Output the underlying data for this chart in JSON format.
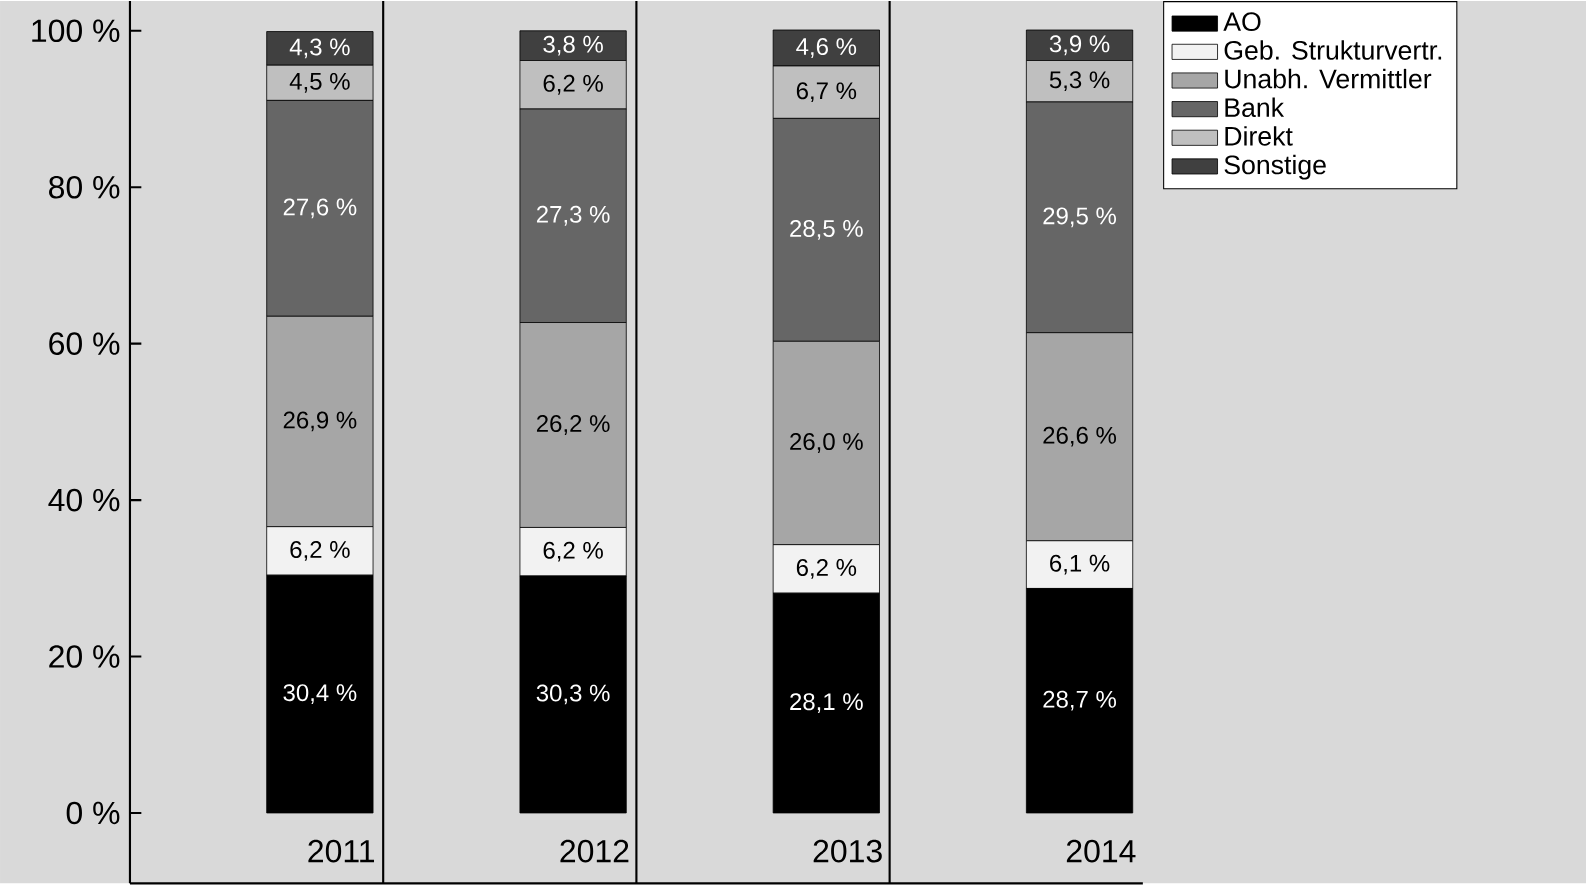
{
  "chart_data": {
    "type": "bar",
    "stacked": true,
    "categories": [
      "2011",
      "2012",
      "2013",
      "2014"
    ],
    "series": [
      {
        "name": "AO",
        "color": "#000000",
        "values": [
          30.4,
          30.3,
          28.1,
          28.7
        ],
        "value_labels": [
          "30,4 %",
          "30,3 %",
          "28,1 %",
          "28,7 %"
        ]
      },
      {
        "name": "Geb. Strukturvertr.",
        "color": "#f2f2f2",
        "values": [
          6.2,
          6.2,
          6.2,
          6.1
        ],
        "value_labels": [
          "6,2 %",
          "6,2 %",
          "6,2 %",
          "6,1 %"
        ]
      },
      {
        "name": "Unabh. Vermittler",
        "color": "#a6a6a6",
        "values": [
          26.9,
          26.2,
          26.0,
          26.6
        ],
        "value_labels": [
          "26,9 %",
          "26,2 %",
          "26,0 %",
          "26,6 %"
        ]
      },
      {
        "name": "Bank",
        "color": "#666666",
        "values": [
          27.6,
          27.3,
          28.5,
          29.5
        ],
        "value_labels": [
          "27,6 %",
          "27,3 %",
          "28,5 %",
          "29,5 %"
        ]
      },
      {
        "name": "Direkt",
        "color": "#bfbfbf",
        "values": [
          4.5,
          6.2,
          6.7,
          5.3
        ],
        "value_labels": [
          "4,5 %",
          "6,2 %",
          "6,7 %",
          "5,3 %"
        ]
      },
      {
        "name": "Sonstige",
        "color": "#404040",
        "values": [
          4.3,
          3.8,
          4.6,
          3.9
        ],
        "value_labels": [
          "4,3 %",
          "3,8 %",
          "4,6 %",
          "3,9 %"
        ]
      }
    ],
    "ylim": [
      0,
      100
    ],
    "yticks": [
      {
        "value": 0,
        "label": "0 %"
      },
      {
        "value": 20,
        "label": "20 %"
      },
      {
        "value": 40,
        "label": "40 %"
      },
      {
        "value": 60,
        "label": "60 %"
      },
      {
        "value": 80,
        "label": "80 %"
      },
      {
        "value": 100,
        "label": "100 %"
      }
    ],
    "legend": "top right"
  }
}
